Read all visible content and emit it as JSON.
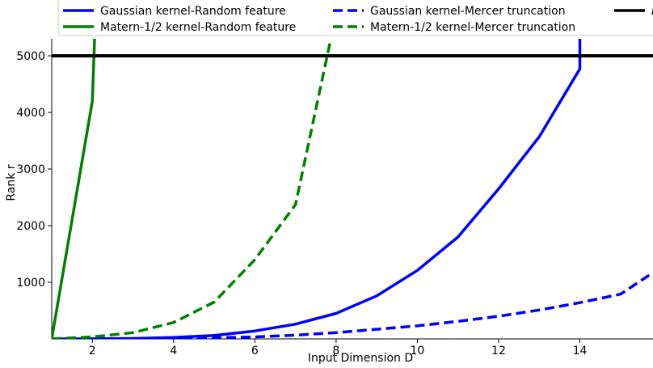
{
  "chart_data": {
    "type": "line",
    "title": "",
    "xlabel": "Input Dimension D",
    "ylabel": "Rank r",
    "xlim": [
      1,
      15.8
    ],
    "ylim": [
      0,
      5300
    ],
    "xticks": [
      2,
      4,
      6,
      8,
      10,
      12,
      14
    ],
    "yticks": [
      1000,
      2000,
      3000,
      4000,
      5000
    ],
    "grid": false,
    "legend_position": "top",
    "series": [
      {
        "name": "Gaussian kernel-Random feature",
        "color": "#0000ff",
        "style": "solid",
        "x": [
          1,
          2,
          3,
          4,
          5,
          6,
          7,
          8,
          9,
          10,
          11,
          12,
          13,
          14,
          14,
          14
        ],
        "y": [
          0,
          2,
          8,
          25,
          60,
          140,
          260,
          450,
          760,
          1210,
          1800,
          2650,
          3570,
          4770,
          5100,
          5400
        ]
      },
      {
        "name": "Gaussian kernel-Mercer truncation",
        "color": "#0000ff",
        "style": "dashed",
        "x": [
          1,
          2,
          3,
          4,
          5,
          6,
          7,
          8,
          9,
          10,
          11,
          12,
          13,
          14,
          15,
          15.8
        ],
        "y": [
          0,
          1,
          3,
          8,
          18,
          35,
          65,
          110,
          170,
          230,
          310,
          400,
          510,
          640,
          790,
          1170
        ]
      },
      {
        "name": "Matern-1/2 kernel-Random feature",
        "color": "#008000",
        "style": "solid",
        "x": [
          1,
          2,
          2.06
        ],
        "y": [
          0,
          4200,
          5400
        ]
      },
      {
        "name": "Matern-1/2 kernel-Mercer truncation",
        "color": "#008000",
        "style": "dashed",
        "x": [
          1,
          2,
          3,
          4,
          5,
          6,
          7,
          7.9
        ],
        "y": [
          0,
          35,
          110,
          290,
          650,
          1400,
          2370,
          5400
        ]
      },
      {
        "name": "N",
        "color": "#000000",
        "style": "solid",
        "x": [
          1,
          15.8
        ],
        "y": [
          5000,
          5000
        ]
      }
    ]
  },
  "legend": {
    "entries": [
      {
        "label": "Gaussian kernel-Random feature",
        "color": "#0000ff",
        "dash": ""
      },
      {
        "label": "Gaussian kernel-Mercer truncation",
        "color": "#0000ff",
        "dash": "12 6"
      },
      {
        "label": "N",
        "color": "#000000",
        "dash": ""
      },
      {
        "label": "Matern-1/2 kernel-Random feature",
        "color": "#008000",
        "dash": ""
      },
      {
        "label": "Matern-1/2 kernel-Mercer truncation",
        "color": "#008000",
        "dash": "12 6"
      }
    ]
  }
}
